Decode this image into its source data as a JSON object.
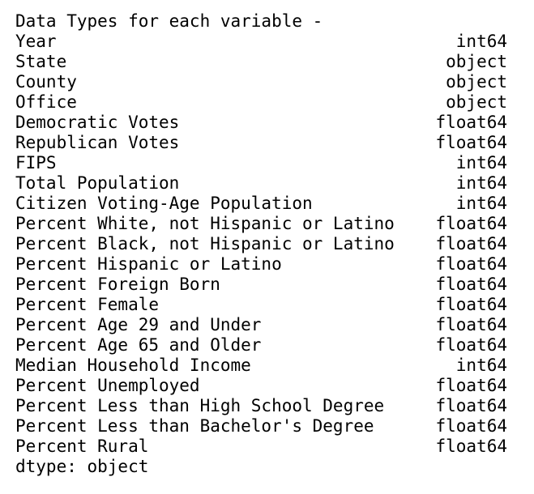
{
  "output": {
    "header": "Data Types for each variable -",
    "rows": [
      {
        "name": "Year",
        "dtype": "int64"
      },
      {
        "name": "State",
        "dtype": "object"
      },
      {
        "name": "County",
        "dtype": "object"
      },
      {
        "name": "Office",
        "dtype": "object"
      },
      {
        "name": "Democratic Votes",
        "dtype": "float64"
      },
      {
        "name": "Republican Votes",
        "dtype": "float64"
      },
      {
        "name": "FIPS",
        "dtype": "int64"
      },
      {
        "name": "Total Population",
        "dtype": "int64"
      },
      {
        "name": "Citizen Voting-Age Population",
        "dtype": "int64"
      },
      {
        "name": "Percent White, not Hispanic or Latino",
        "dtype": "float64"
      },
      {
        "name": "Percent Black, not Hispanic or Latino",
        "dtype": "float64"
      },
      {
        "name": "Percent Hispanic or Latino",
        "dtype": "float64"
      },
      {
        "name": "Percent Foreign Born",
        "dtype": "float64"
      },
      {
        "name": "Percent Female",
        "dtype": "float64"
      },
      {
        "name": "Percent Age 29 and Under",
        "dtype": "float64"
      },
      {
        "name": "Percent Age 65 and Older",
        "dtype": "float64"
      },
      {
        "name": "Median Household Income",
        "dtype": "int64"
      },
      {
        "name": "Percent Unemployed",
        "dtype": "float64"
      },
      {
        "name": "Percent Less than High School Degree",
        "dtype": "float64"
      },
      {
        "name": "Percent Less than Bachelor's Degree",
        "dtype": "float64"
      },
      {
        "name": "Percent Rural",
        "dtype": "float64"
      }
    ],
    "footer": "dtype: object"
  }
}
